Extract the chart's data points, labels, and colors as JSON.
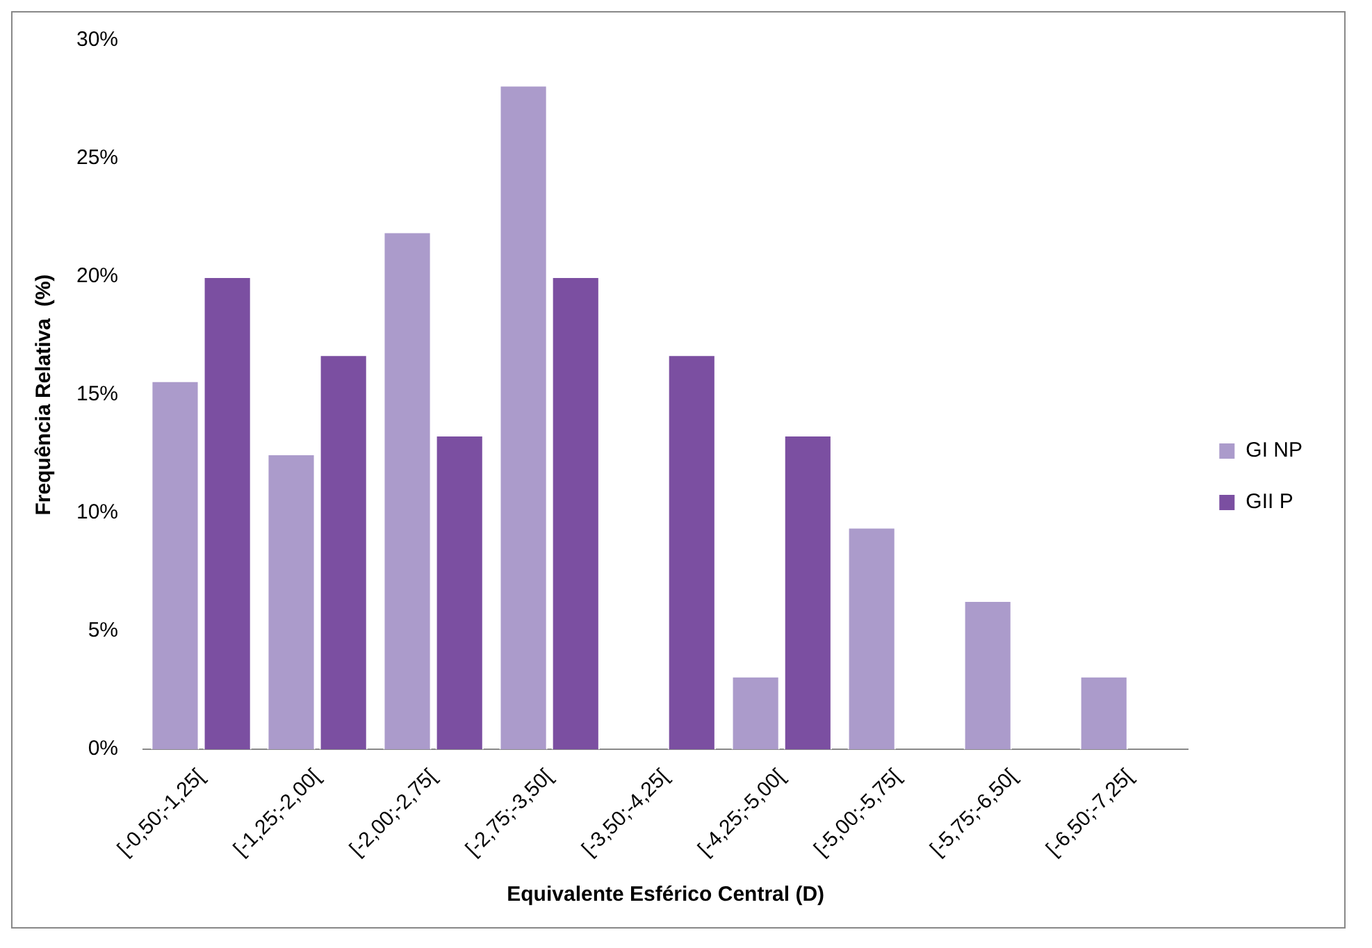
{
  "chart_data": {
    "type": "bar",
    "xlabel": "Equivalente Esférico Central (D)",
    "ylabel": "Frequência Relativa  (%)",
    "categories": [
      "[-0,50;-1,25[",
      "[-1,25;-2,00[",
      "[-2,00;-2,75[",
      "[-2,75;-3,50[",
      "[-3,50;-4,25[",
      "[-4,25;-5,00[",
      "[-5,00;-5,75[",
      "[-5,75;-6,50[",
      "[-6,50;-7,25["
    ],
    "series": [
      {
        "name": "GI NP",
        "color": "#ab9bcb",
        "values": [
          15.6,
          12.5,
          21.9,
          28.1,
          0,
          3.1,
          9.4,
          6.3,
          3.1
        ]
      },
      {
        "name": "GII P",
        "color": "#7b4fa1",
        "values": [
          20.0,
          16.7,
          13.3,
          20.0,
          16.7,
          13.3,
          0,
          0,
          0
        ]
      }
    ],
    "ylim": [
      0,
      30
    ],
    "yticks": [
      {
        "value": 0,
        "label": "0%"
      },
      {
        "value": 5,
        "label": "5%"
      },
      {
        "value": 10,
        "label": "10%"
      },
      {
        "value": 15,
        "label": "15%"
      },
      {
        "value": 20,
        "label": "20%"
      },
      {
        "value": 25,
        "label": "25%"
      },
      {
        "value": 30,
        "label": "30%"
      }
    ],
    "grid": false,
    "legend": "right"
  }
}
